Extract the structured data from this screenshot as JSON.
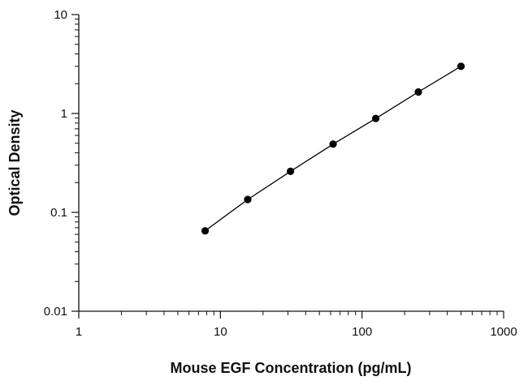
{
  "chart_data": {
    "type": "scatter",
    "title": "",
    "xlabel": "Mouse EGF Concentration (pg/mL)",
    "ylabel": "Optical Density",
    "xscale": "log",
    "yscale": "log",
    "xlim": [
      1,
      1000
    ],
    "ylim": [
      0.01,
      10
    ],
    "x_ticks": [
      1,
      10,
      100,
      1000
    ],
    "x_tick_labels": [
      "1",
      "10",
      "100",
      "1000"
    ],
    "y_ticks": [
      0.01,
      0.1,
      1,
      10
    ],
    "y_tick_labels": [
      "0.01",
      "0.1",
      "1",
      "10"
    ],
    "grid": false,
    "legend": "none",
    "fit_line": true,
    "series": [
      {
        "x": [
          7.8,
          15.6,
          31.25,
          62.5,
          125,
          250,
          500
        ],
        "y": [
          0.065,
          0.135,
          0.26,
          0.49,
          0.89,
          1.65,
          3.0
        ]
      }
    ],
    "colors": {
      "marker": "#000000",
      "line": "#000000"
    }
  }
}
